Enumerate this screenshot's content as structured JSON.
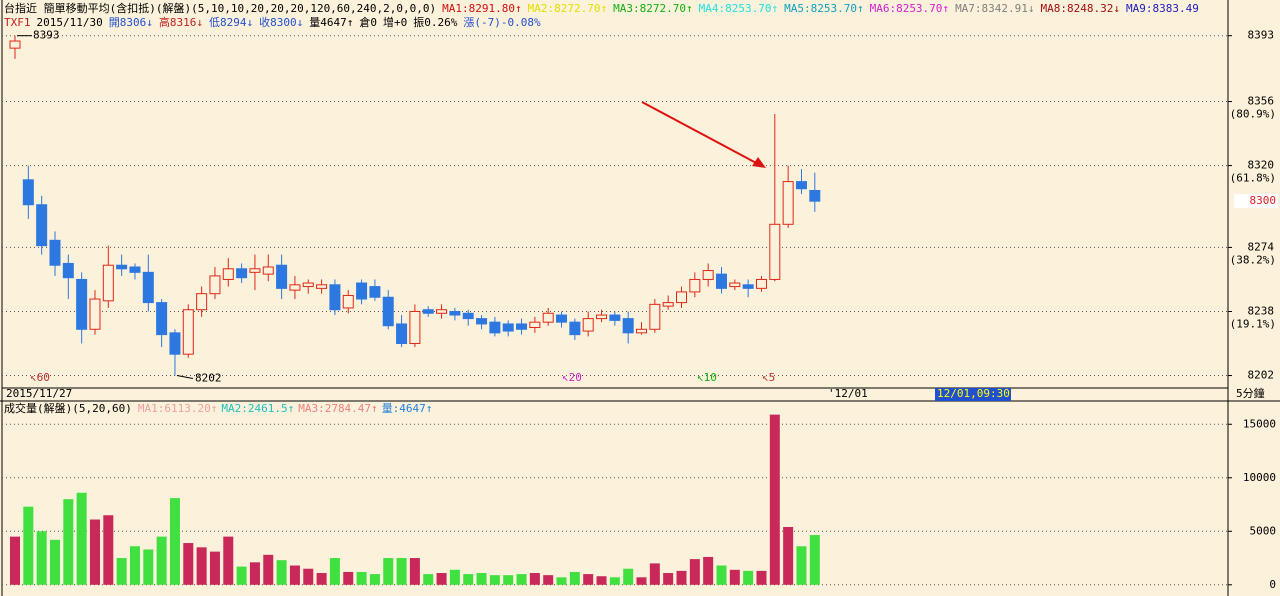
{
  "header": {
    "title": "台指近 簡單移動平均(含扣抵)(解盤)(5,10,10,20,20,20,120,60,240,2,0,0,0)",
    "ma_labels": [
      {
        "text": "MA1:8291.80↑",
        "color": "#d01010"
      },
      {
        "text": "MA2:8272.70↑",
        "color": "#e0e000"
      },
      {
        "text": "MA3:8272.70↑",
        "color": "#10b010"
      },
      {
        "text": "MA4:8253.70↑",
        "color": "#20e0e0"
      },
      {
        "text": "MA5:8253.70↑",
        "color": "#10a0c0"
      },
      {
        "text": "MA6:8253.70↑",
        "color": "#d020d0"
      },
      {
        "text": "MA7:8342.91↓",
        "color": "#808080"
      },
      {
        "text": "MA8:8248.32↓",
        "color": "#a01010"
      },
      {
        "text": "MA9:8383.49",
        "color": "#2020c0"
      }
    ],
    "quote": [
      "TXF1",
      "2015/11/30",
      "開8306↓",
      "高8316↓",
      "低8294↓",
      "收8300↓",
      "量4647↑",
      "倉0",
      "增+0",
      "振0.26%",
      "漲(-7)-0.08%"
    ],
    "annotations": [
      "↖60",
      "↖20",
      "↖10",
      "↖5"
    ],
    "date_bar": {
      "start": "2015/11/27",
      "next": "'12/01",
      "cursor": "12/01,09:30",
      "period": "5分鐘"
    }
  },
  "chart_data": [
    {
      "type": "candlestick",
      "up_color": "#e02818",
      "down_color": "#2c78e0",
      "open": [
        8386,
        8312,
        8298,
        8278,
        8265,
        8256,
        8228,
        8244,
        8264,
        8263,
        8260,
        8243,
        8226,
        8214,
        8239,
        8248,
        8256,
        8262,
        8260,
        8259,
        8264,
        8250,
        8252,
        8251,
        8253,
        8240,
        8254,
        8252,
        8246,
        8231,
        8220,
        8239,
        8237,
        8238,
        8237,
        8234,
        8232,
        8231,
        8231,
        8229,
        8232,
        8236,
        8232,
        8227,
        8234,
        8236,
        8234,
        8226,
        8228,
        8241,
        8243,
        8249,
        8256,
        8259,
        8252,
        8253,
        8251,
        8256,
        8287,
        8311,
        8306
      ],
      "high": [
        8393,
        8320,
        8303,
        8283,
        8270,
        8260,
        8250,
        8275,
        8270,
        8265,
        8270,
        8245,
        8228,
        8242,
        8252,
        8263,
        8268,
        8265,
        8270,
        8270,
        8270,
        8258,
        8256,
        8256,
        8256,
        8250,
        8256,
        8256,
        8250,
        8236,
        8242,
        8241,
        8242,
        8240,
        8239,
        8236,
        8235,
        8233,
        8234,
        8235,
        8240,
        8238,
        8234,
        8238,
        8239,
        8238,
        8238,
        8232,
        8245,
        8247,
        8252,
        8260,
        8265,
        8263,
        8256,
        8256,
        8258,
        8349,
        8320,
        8318,
        8316
      ],
      "low": [
        8380,
        8290,
        8270,
        8258,
        8245,
        8220,
        8225,
        8240,
        8258,
        8256,
        8238,
        8218,
        8202,
        8212,
        8235,
        8245,
        8252,
        8254,
        8250,
        8255,
        8245,
        8245,
        8248,
        8248,
        8236,
        8237,
        8242,
        8244,
        8228,
        8218,
        8218,
        8235,
        8234,
        8233,
        8230,
        8228,
        8224,
        8224,
        8225,
        8226,
        8230,
        8229,
        8222,
        8224,
        8232,
        8230,
        8220,
        8225,
        8226,
        8239,
        8240,
        8246,
        8252,
        8248,
        8250,
        8246,
        8249,
        8255,
        8285,
        8304,
        8294
      ],
      "close": [
        8390,
        8298,
        8275,
        8264,
        8257,
        8228,
        8245,
        8264,
        8262,
        8260,
        8243,
        8225,
        8214,
        8239,
        8248,
        8258,
        8262,
        8257,
        8262,
        8263,
        8251,
        8253,
        8254,
        8253,
        8239,
        8247,
        8245,
        8246,
        8230,
        8220,
        8238,
        8237,
        8239,
        8236,
        8234,
        8231,
        8226,
        8227,
        8228,
        8232,
        8237,
        8232,
        8225,
        8234,
        8236,
        8233,
        8226,
        8228,
        8242,
        8243,
        8249,
        8256,
        8261,
        8251,
        8254,
        8251,
        8256,
        8287,
        8311,
        8307,
        8300
      ],
      "ylim": [
        8195,
        8408
      ],
      "yticks": [
        8202,
        8238,
        8274,
        8320,
        8356,
        8393
      ],
      "fib_labels": [
        {
          "value": 8356,
          "label": "(80.9%)"
        },
        {
          "value": 8320,
          "label": "(61.8%)"
        },
        {
          "value": 8274,
          "label": "(38.2%)"
        },
        {
          "value": 8238,
          "label": "(19.1%)"
        }
      ],
      "grid": true
    },
    {
      "type": "bar",
      "title": "成交量(解盤)(5,20,60)",
      "ma_labels": [
        {
          "text": "MA1:6113.20↑",
          "color": "#f0a0a0"
        },
        {
          "text": "MA2:2461.5↑",
          "color": "#20c0c0"
        },
        {
          "text": "MA3:2784.47↑",
          "color": "#f08080"
        },
        {
          "text": "量:4647↑",
          "color": "#2080e0"
        }
      ],
      "up_color": "#c8285a",
      "down_color": "#40e040",
      "values": [
        4500,
        7300,
        5000,
        4200,
        8000,
        8600,
        6100,
        6500,
        2500,
        3600,
        3300,
        4500,
        8100,
        3900,
        3500,
        3100,
        4500,
        1700,
        2100,
        2800,
        2300,
        1800,
        1500,
        1100,
        2500,
        1200,
        1200,
        1000,
        2500,
        2500,
        2500,
        1000,
        1100,
        1400,
        1000,
        1100,
        900,
        900,
        1000,
        1100,
        900,
        700,
        1200,
        1000,
        800,
        700,
        1500,
        700,
        2000,
        1100,
        1300,
        2400,
        2600,
        1800,
        1400,
        1300,
        1300,
        15900,
        5400,
        3600,
        4647
      ],
      "ylim": [
        -300,
        16800
      ],
      "yticks": [
        0,
        5000,
        10000,
        15000
      ],
      "grid": true
    }
  ]
}
